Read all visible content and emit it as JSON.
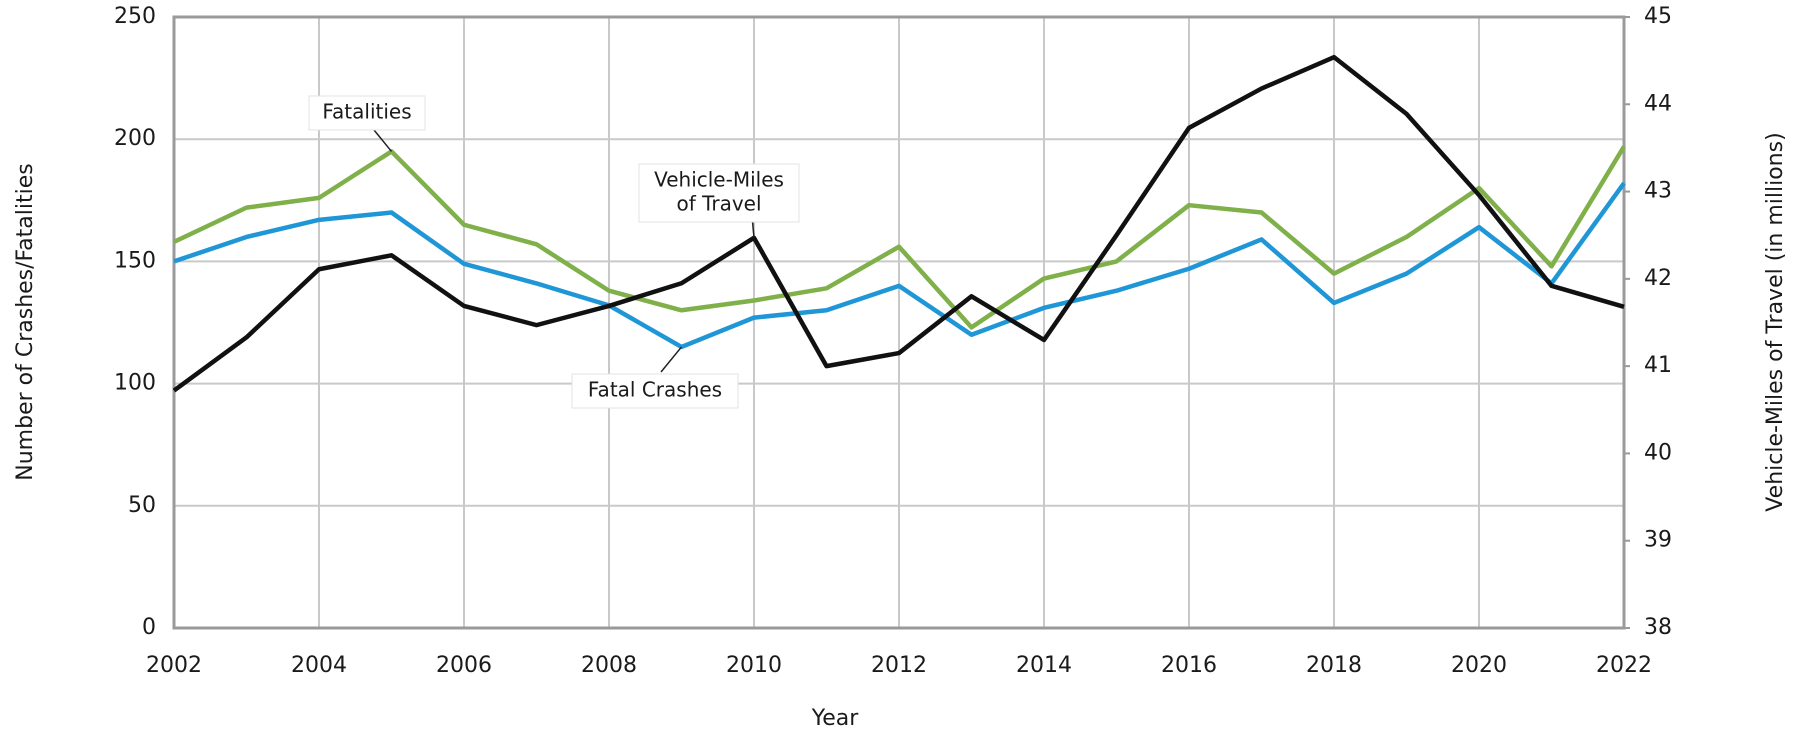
{
  "chart_data": {
    "type": "line",
    "x_label": "Year",
    "y_label": "Number of Crashes/Fatalities",
    "y2_label": "Vehicle-Miles of Travel (in millions)",
    "x": [
      2002,
      2003,
      2004,
      2005,
      2006,
      2007,
      2008,
      2009,
      2010,
      2011,
      2012,
      2013,
      2014,
      2015,
      2016,
      2017,
      2018,
      2019,
      2020,
      2021,
      2022
    ],
    "series": [
      {
        "color": "#7fb04a",
        "values": [
          158,
          172,
          176,
          195,
          165,
          157,
          138,
          130,
          134,
          139,
          156,
          123,
          143,
          150,
          173,
          170,
          145,
          160,
          180,
          148,
          197
        ]
      },
      {
        "color": "#1f96d6",
        "values": [
          150,
          160,
          167,
          170,
          149,
          141,
          132,
          115,
          127,
          130,
          140,
          120,
          131,
          138,
          147,
          159,
          133,
          145,
          164,
          141,
          182
        ]
      },
      {
        "color": "#111111",
        "axis": "y2",
        "values": [
          40.72,
          41.33,
          42.11,
          42.27,
          41.69,
          41.47,
          41.69,
          41.95,
          42.47,
          41.0,
          41.15,
          41.8,
          41.3,
          42.5,
          43.73,
          44.18,
          44.54,
          43.89,
          42.96,
          41.92,
          41.68
        ]
      }
    ],
    "annotations": [
      {
        "lines": [
          "Fatalities"
        ]
      },
      {
        "lines": [
          "Vehicle-Miles",
          "of Travel"
        ]
      },
      {
        "lines": [
          "Fatal Crashes"
        ]
      }
    ],
    "xlim": [
      2002,
      2022
    ],
    "xticks": [
      2002,
      2004,
      2006,
      2008,
      2010,
      2012,
      2014,
      2016,
      2018,
      2020,
      2022
    ],
    "ylim": [
      0,
      250
    ],
    "yticks": [
      0,
      50,
      100,
      150,
      200,
      250
    ],
    "y2lim": [
      38,
      45
    ],
    "y2ticks": [
      38,
      39,
      40,
      41,
      42,
      43,
      44,
      45
    ],
    "grid": true
  }
}
